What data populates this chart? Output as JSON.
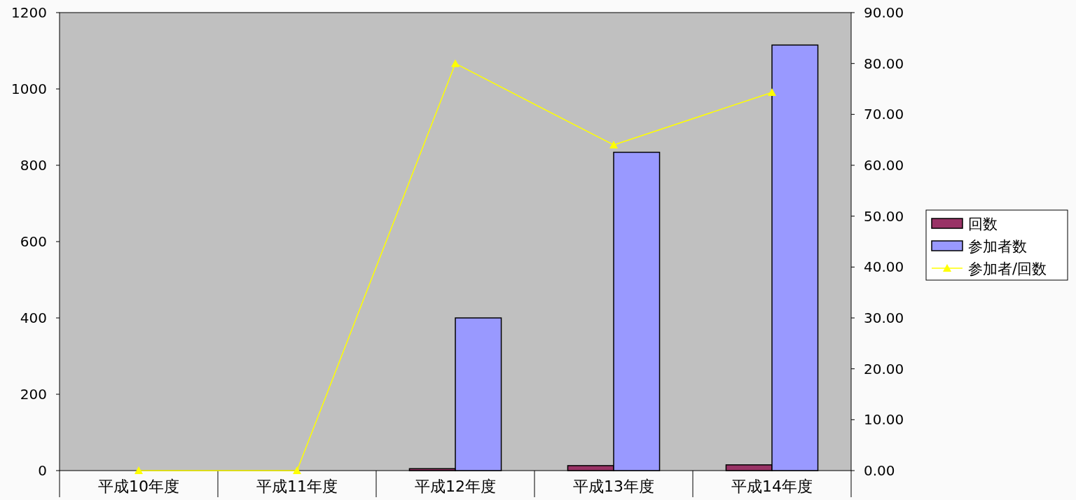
{
  "chart_data": {
    "type": "bar",
    "categories": [
      "平成10年度",
      "平成11年度",
      "平成12年度",
      "平成13年度",
      "平成14年度"
    ],
    "series": [
      {
        "name": "回数",
        "color": "#993366",
        "values": [
          0,
          0,
          5,
          13,
          15
        ]
      },
      {
        "name": "参加者数",
        "color": "#9999ff",
        "values": [
          0,
          0,
          400,
          834,
          1115
        ]
      },
      {
        "name": "参加者/回数",
        "type": "line",
        "axis": "y2",
        "color": "#ffff00",
        "marker": "triangle",
        "values": [
          0,
          0,
          80,
          64,
          74.3
        ]
      }
    ],
    "ylim": [
      0,
      1200
    ],
    "yticks": [
      0,
      200,
      400,
      600,
      800,
      1000,
      1200
    ],
    "y2lim": [
      0,
      90
    ],
    "y2ticks": [
      {
        "value": 0,
        "label": "0.00"
      },
      {
        "value": 10,
        "label": "10.00"
      },
      {
        "value": 20,
        "label": "20.00"
      },
      {
        "value": 30,
        "label": "30.00"
      },
      {
        "value": 40,
        "label": "40.00"
      },
      {
        "value": 50,
        "label": "50.00"
      },
      {
        "value": 60,
        "label": "60.00"
      },
      {
        "value": 70,
        "label": "70.00"
      },
      {
        "value": 80,
        "label": "80.00"
      },
      {
        "value": 90,
        "label": "90.00"
      }
    ],
    "grid": false,
    "legend": "right"
  }
}
